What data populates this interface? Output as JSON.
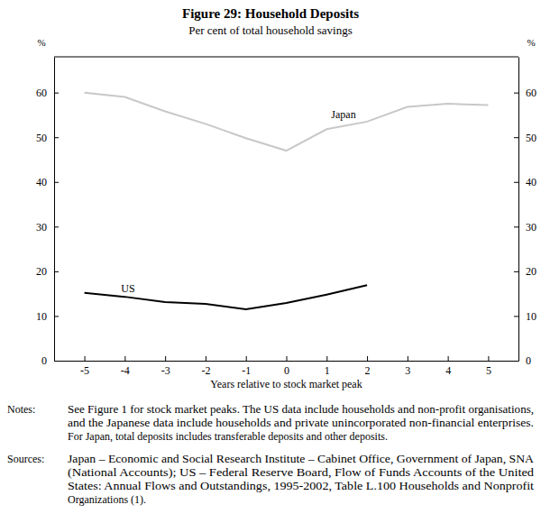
{
  "chart_data": {
    "type": "line",
    "title": "Figure 29: Household Deposits",
    "subtitle": "Per cent of total household savings",
    "x_label": "Years relative to stock market peak",
    "y_label": "%",
    "x": [
      -5,
      -4,
      -3,
      -2,
      -1,
      0,
      1,
      2,
      3,
      4,
      5
    ],
    "series": [
      {
        "name": "Japan",
        "color": "#c8c8c8",
        "values": [
          60,
          59,
          55.8,
          53,
          49.8,
          47,
          51.8,
          53.5,
          56.8,
          57.5,
          57.2
        ]
      },
      {
        "name": "US",
        "color": "#000000",
        "values": [
          15.2,
          14.3,
          13.1,
          12.7,
          11.5,
          12.9,
          14.8,
          16.9,
          null,
          null,
          null
        ]
      }
    ],
    "xlim": [
      -5.75,
      5.75
    ],
    "xticks": [
      -5,
      -4,
      -3,
      -2,
      -1,
      0,
      1,
      2,
      3,
      4,
      5
    ],
    "ylim": [
      0,
      68
    ],
    "yticks": [
      0,
      10,
      20,
      30,
      40,
      50,
      60
    ],
    "grid": false,
    "notes": {
      "label": "Notes:",
      "lines": [
        "See Figure 1 for stock market peaks. The US data include households and non-profit organisations,",
        "and the Japanese data include households and private unincorporated non-financial enterprises.",
        "For Japan, total deposits includes transferable deposits and other deposits."
      ]
    },
    "sources": {
      "label": "Sources:",
      "lines": [
        "Japan – Economic and Social Research Institute – Cabinet Office, Government of Japan, SNA",
        "(National Accounts); US – Federal Reserve Board, Flow of Funds Accounts of the United",
        "States: Annual Flows and Outstandings, 1995-2002, Table L.100 Households and Nonprofit",
        "Organizations (1)."
      ]
    }
  }
}
